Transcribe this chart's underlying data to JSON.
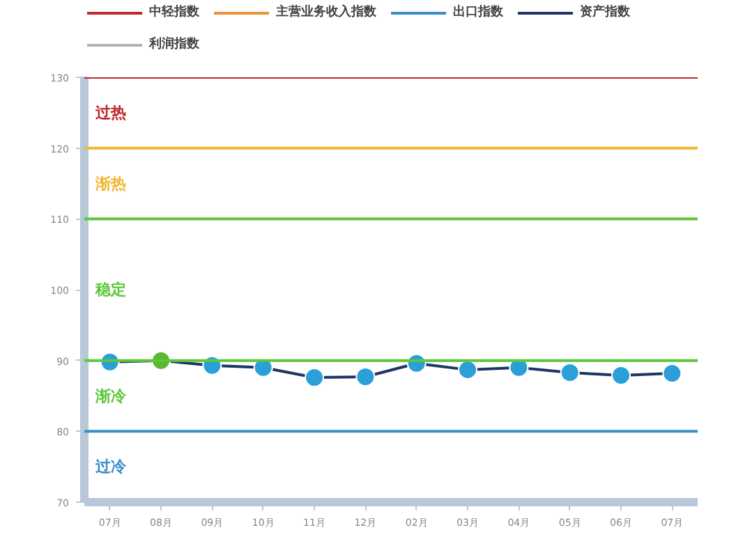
{
  "chart_data": {
    "type": "line",
    "categories": [
      "07月",
      "08月",
      "09月",
      "10月",
      "11月",
      "12月",
      "02月",
      "03月",
      "04月",
      "05月",
      "06月",
      "07月"
    ],
    "series": [
      {
        "name": "中轻指数",
        "color": "#c0282d",
        "values": [
          null,
          null,
          null,
          null,
          null,
          null,
          null,
          null,
          null,
          null,
          null,
          null
        ]
      },
      {
        "name": "主营业务收入指数",
        "color": "#e8943a",
        "values": [
          null,
          null,
          null,
          null,
          null,
          null,
          null,
          null,
          null,
          null,
          null,
          null
        ]
      },
      {
        "name": "出口指数",
        "color": "#3a8fc8",
        "values": [
          null,
          null,
          null,
          null,
          null,
          null,
          null,
          null,
          null,
          null,
          null,
          null
        ]
      },
      {
        "name": "资产指数",
        "color": "#1f3566",
        "colors": [
          "#2a9fd8",
          "#5cb82e",
          "#2a9fd8",
          "#2a9fd8",
          "#2a9fd8",
          "#2a9fd8",
          "#2a9fd8",
          "#2a9fd8",
          "#2a9fd8",
          "#2a9fd8",
          "#2a9fd8",
          "#2a9fd8"
        ],
        "values": [
          89.8,
          90.0,
          89.3,
          89.0,
          87.6,
          87.7,
          89.6,
          88.7,
          89.0,
          88.3,
          87.9,
          88.2
        ]
      },
      {
        "name": "利润指数",
        "color": "#b4b4b4",
        "values": [
          null,
          null,
          null,
          null,
          null,
          null,
          null,
          null,
          null,
          null,
          null,
          null
        ]
      }
    ],
    "ylim": [
      70,
      130
    ],
    "yticks": [
      70,
      80,
      90,
      100,
      110,
      120,
      130
    ],
    "ref_lines": [
      {
        "axis": "y",
        "value": 130,
        "color": "#c0282d"
      },
      {
        "axis": "y",
        "value": 120,
        "color": "#f0b830"
      },
      {
        "axis": "y",
        "value": 110,
        "color": "#5cc83a"
      },
      {
        "axis": "y",
        "value": 90,
        "color": "#5cc83a"
      },
      {
        "axis": "y",
        "value": 80,
        "color": "#3a8fc8"
      }
    ],
    "annotations": [
      "过热",
      "渐热",
      "稳定",
      "渐冷",
      "过冷"
    ],
    "marker": "circle",
    "grid": false,
    "legend": "top"
  }
}
